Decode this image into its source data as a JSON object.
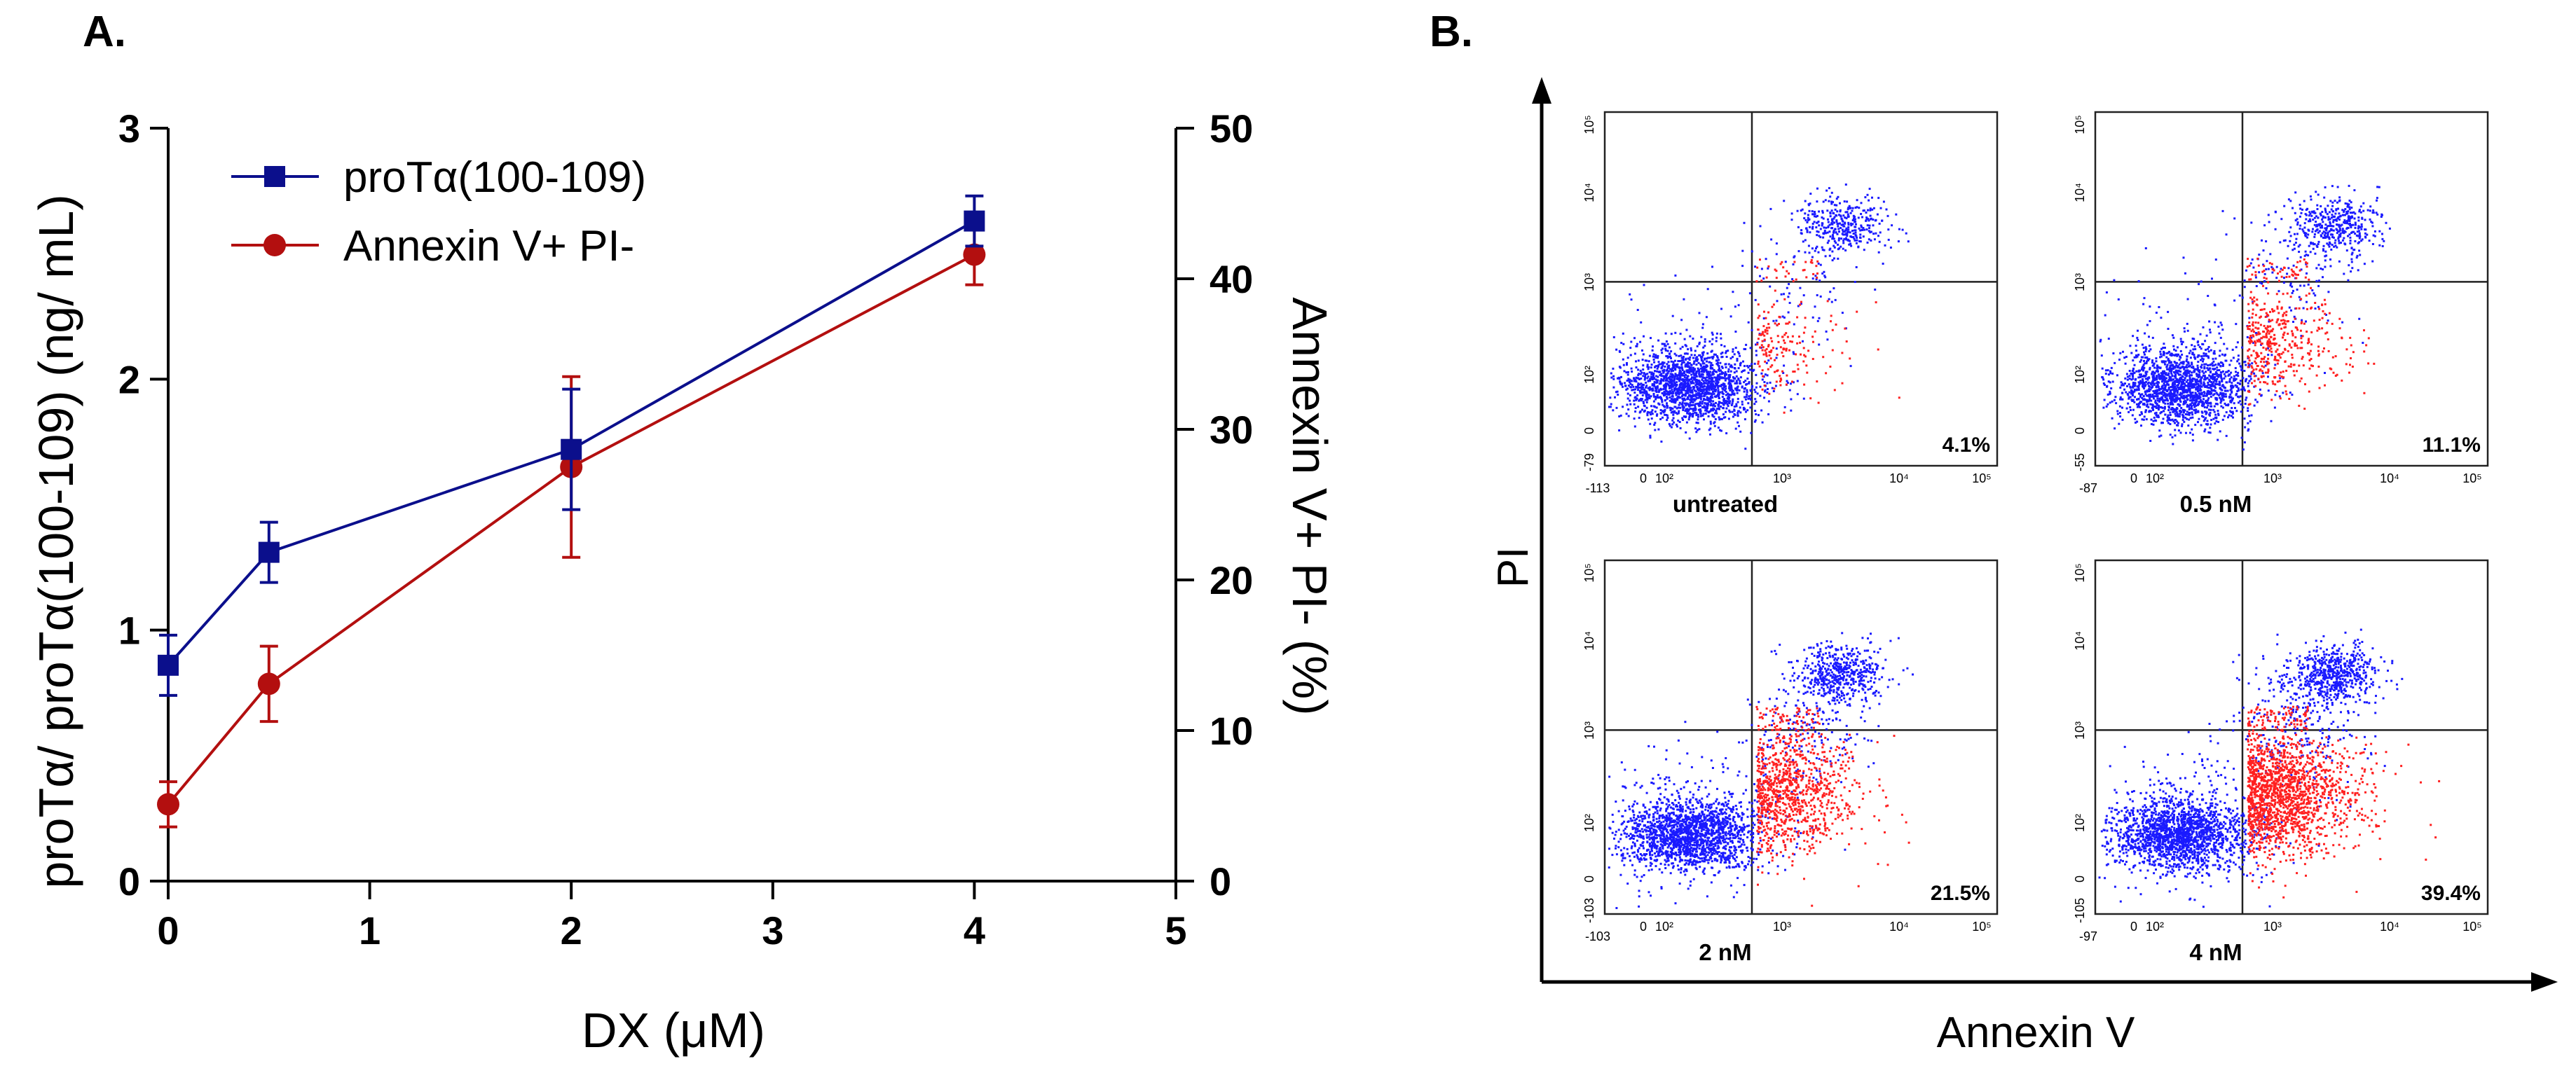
{
  "panel_a_label": "A.",
  "panel_b_label": "B.",
  "colors": {
    "blue": "#0b0f8c",
    "red": "#b30f0f",
    "scatter_blue": "#1a1aff",
    "scatter_red": "#ff2020"
  },
  "chart_data": [
    {
      "type": "line",
      "title": "",
      "xlabel": "DX (μM)",
      "ylabel": "proTα/ proTα(100-109) (ng/ mL)",
      "y2label": "Annexin V+ PI- (%)",
      "xlim": [
        0,
        5
      ],
      "ylim": [
        0,
        3
      ],
      "y2lim": [
        0,
        50
      ],
      "x_ticks": [
        "0",
        "1",
        "2",
        "3",
        "4",
        "5"
      ],
      "y_ticks": [
        "0",
        "1",
        "2",
        "3"
      ],
      "y2_ticks": [
        "0",
        "10",
        "20",
        "30",
        "40",
        "50"
      ],
      "legend_position": "top-left",
      "series": [
        {
          "name": "proTα(100-109)",
          "axis": "left",
          "marker": "square",
          "x": [
            0,
            0.5,
            2,
            4
          ],
          "values": [
            0.86,
            1.31,
            1.72,
            2.63
          ],
          "errors": [
            0.12,
            0.12,
            0.24,
            0.1
          ]
        },
        {
          "name": "Annexin V+ PI-",
          "axis": "right",
          "marker": "circle",
          "x": [
            0,
            0.5,
            2,
            4
          ],
          "values": [
            5.1,
            13.1,
            27.5,
            41.6
          ],
          "errors": [
            1.5,
            2.5,
            6.0,
            2.0
          ]
        }
      ]
    },
    {
      "type": "scatter",
      "title": "",
      "xlabel": "Annexin V",
      "ylabel": "PI",
      "plots": [
        {
          "condition": "untreated",
          "percent": "4.1%",
          "x_min_label": "-113",
          "y_min_label": "-79",
          "density": 1.0
        },
        {
          "condition": "0.5 nM",
          "percent": "11.1%",
          "x_min_label": "-87",
          "y_min_label": "-55",
          "density": 1.6
        },
        {
          "condition": "2 nM",
          "percent": "21.5%",
          "x_min_label": "-103",
          "y_min_label": "-103",
          "density": 2.4
        },
        {
          "condition": "4 nM",
          "percent": "39.4%",
          "x_min_label": "-97",
          "y_min_label": "-105",
          "density": 3.2
        }
      ],
      "x_ticks": [
        "0",
        "10²",
        "10³",
        "10⁴",
        "10⁵"
      ],
      "y_ticks": [
        "0",
        "10²",
        "10³",
        "10⁴",
        "10⁵"
      ]
    }
  ]
}
